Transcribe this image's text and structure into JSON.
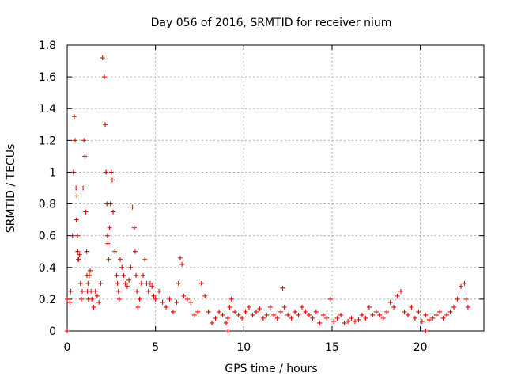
{
  "chart_data": {
    "type": "scatter",
    "title": "Day 056 of 2016, SRMTID for receiver nium",
    "xlabel": "GPS time / hours",
    "ylabel": "SRMTID / TECUs",
    "xlim": [
      0,
      23.6
    ],
    "ylim": [
      0,
      1.8
    ],
    "xticks": [
      0,
      5,
      10,
      15,
      20
    ],
    "xtick_labels": [
      "0",
      "5",
      "10",
      "15",
      "20"
    ],
    "yticks": [
      0,
      0.2,
      0.4,
      0.6,
      0.8,
      1,
      1.2,
      1.4,
      1.6,
      1.8
    ],
    "ytick_labels": [
      "0",
      "0.2",
      "0.4",
      "0.6",
      "0.8",
      "1",
      "1.2",
      "1.4",
      "1.6",
      "1.8"
    ],
    "grid": true,
    "marker": "+",
    "colors": {
      "series": "#ee0000",
      "grid": "#b0b0b0",
      "axis": "#000000"
    },
    "series": [
      {
        "name": "SRMTID",
        "x": [
          0.0,
          0.15,
          0.2,
          0.3,
          0.35,
          0.4,
          0.45,
          0.5,
          0.52,
          0.55,
          0.58,
          0.6,
          0.62,
          0.65,
          0.7,
          0.75,
          0.8,
          0.85,
          0.9,
          0.95,
          1.0,
          1.05,
          1.1,
          1.12,
          1.15,
          1.18,
          1.2,
          1.25,
          1.3,
          1.35,
          1.4,
          1.5,
          1.6,
          1.7,
          1.8,
          1.9,
          2.0,
          2.1,
          2.15,
          2.2,
          2.25,
          2.28,
          2.3,
          2.35,
          2.4,
          2.45,
          2.5,
          2.55,
          2.6,
          2.7,
          2.8,
          2.85,
          2.9,
          2.95,
          3.0,
          3.1,
          3.2,
          3.3,
          3.4,
          3.5,
          3.6,
          3.7,
          3.8,
          3.85,
          3.9,
          3.95,
          4.0,
          4.1,
          4.2,
          4.3,
          4.4,
          4.5,
          4.6,
          4.7,
          4.8,
          4.9,
          5.0,
          5.2,
          5.4,
          5.6,
          5.8,
          6.0,
          6.2,
          6.3,
          6.4,
          6.5,
          6.6,
          6.8,
          7.0,
          7.2,
          7.4,
          7.6,
          7.8,
          8.0,
          8.2,
          8.4,
          8.6,
          8.8,
          9.0,
          9.1,
          9.2,
          9.3,
          9.5,
          9.7,
          9.9,
          10.1,
          10.3,
          10.5,
          10.7,
          10.9,
          11.1,
          11.3,
          11.5,
          11.7,
          11.9,
          12.1,
          12.2,
          12.3,
          12.5,
          12.7,
          12.9,
          13.1,
          13.3,
          13.5,
          13.7,
          13.9,
          14.1,
          14.3,
          14.5,
          14.7,
          14.9,
          15.1,
          15.3,
          15.5,
          15.7,
          15.9,
          16.1,
          16.3,
          16.5,
          16.7,
          16.9,
          17.1,
          17.3,
          17.5,
          17.7,
          17.9,
          18.1,
          18.3,
          18.5,
          18.7,
          18.9,
          19.1,
          19.3,
          19.5,
          19.7,
          19.9,
          20.1,
          20.3,
          20.5,
          20.7,
          20.9,
          21.1,
          21.3,
          21.5,
          21.7,
          21.9,
          22.1,
          22.3,
          22.5,
          22.6,
          22.7,
          0.0,
          9.1,
          20.3
        ],
        "y": [
          0.2,
          0.18,
          0.25,
          0.6,
          1.0,
          1.35,
          1.2,
          0.9,
          0.7,
          0.85,
          0.6,
          0.5,
          0.45,
          0.45,
          0.48,
          0.3,
          0.2,
          0.25,
          0.9,
          1.2,
          1.1,
          0.75,
          0.5,
          0.35,
          0.25,
          0.3,
          0.2,
          0.35,
          0.38,
          0.25,
          0.2,
          0.15,
          0.25,
          0.22,
          0.18,
          0.3,
          1.72,
          1.6,
          1.3,
          1.0,
          0.8,
          0.6,
          0.55,
          0.45,
          0.65,
          0.8,
          1.0,
          0.95,
          0.75,
          0.5,
          0.35,
          0.3,
          0.25,
          0.2,
          0.45,
          0.4,
          0.35,
          0.3,
          0.28,
          0.32,
          0.4,
          0.78,
          0.65,
          0.5,
          0.35,
          0.25,
          0.15,
          0.2,
          0.3,
          0.35,
          0.45,
          0.3,
          0.25,
          0.3,
          0.28,
          0.22,
          0.2,
          0.25,
          0.18,
          0.15,
          0.2,
          0.12,
          0.18,
          0.3,
          0.46,
          0.42,
          0.22,
          0.2,
          0.18,
          0.1,
          0.12,
          0.3,
          0.22,
          0.12,
          0.05,
          0.08,
          0.12,
          0.1,
          0.05,
          0.08,
          0.15,
          0.2,
          0.12,
          0.1,
          0.08,
          0.12,
          0.15,
          0.1,
          0.12,
          0.14,
          0.08,
          0.1,
          0.15,
          0.1,
          0.08,
          0.12,
          0.27,
          0.15,
          0.1,
          0.08,
          0.12,
          0.1,
          0.15,
          0.12,
          0.1,
          0.08,
          0.12,
          0.05,
          0.1,
          0.08,
          0.2,
          0.06,
          0.08,
          0.1,
          0.05,
          0.06,
          0.08,
          0.06,
          0.07,
          0.1,
          0.08,
          0.15,
          0.1,
          0.12,
          0.1,
          0.08,
          0.12,
          0.18,
          0.15,
          0.22,
          0.25,
          0.12,
          0.1,
          0.15,
          0.08,
          0.12,
          0.06,
          0.1,
          0.07,
          0.08,
          0.1,
          0.12,
          0.08,
          0.1,
          0.12,
          0.15,
          0.2,
          0.28,
          0.3,
          0.2,
          0.15,
          0.0,
          0.0,
          0.0
        ]
      }
    ]
  }
}
